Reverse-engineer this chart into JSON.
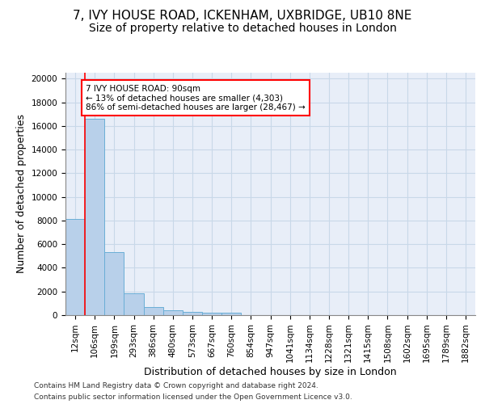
{
  "title_line1": "7, IVY HOUSE ROAD, ICKENHAM, UXBRIDGE, UB10 8NE",
  "title_line2": "Size of property relative to detached houses in London",
  "xlabel": "Distribution of detached houses by size in London",
  "ylabel": "Number of detached properties",
  "footer_line1": "Contains HM Land Registry data © Crown copyright and database right 2024.",
  "footer_line2": "Contains public sector information licensed under the Open Government Licence v3.0.",
  "categories": [
    "12sqm",
    "106sqm",
    "199sqm",
    "293sqm",
    "386sqm",
    "480sqm",
    "573sqm",
    "667sqm",
    "760sqm",
    "854sqm",
    "947sqm",
    "1041sqm",
    "1134sqm",
    "1228sqm",
    "1321sqm",
    "1415sqm",
    "1508sqm",
    "1602sqm",
    "1695sqm",
    "1789sqm",
    "1882sqm"
  ],
  "values": [
    8100,
    16600,
    5300,
    1850,
    700,
    380,
    280,
    220,
    200,
    0,
    0,
    0,
    0,
    0,
    0,
    0,
    0,
    0,
    0,
    0,
    0
  ],
  "bar_color": "#b8d0ea",
  "bar_edge_color": "#6aaed6",
  "vline_x": 0.5,
  "vline_color": "red",
  "annotation_text": "7 IVY HOUSE ROAD: 90sqm\n← 13% of detached houses are smaller (4,303)\n86% of semi-detached houses are larger (28,467) →",
  "annotation_box_color": "white",
  "annotation_box_edge": "red",
  "ylim": [
    0,
    20500
  ],
  "yticks": [
    0,
    2000,
    4000,
    6000,
    8000,
    10000,
    12000,
    14000,
    16000,
    18000,
    20000
  ],
  "grid_color": "#c8d8e8",
  "bg_color": "#e8eef8",
  "title_fontsize": 11,
  "subtitle_fontsize": 10,
  "axis_label_fontsize": 9,
  "tick_fontsize": 7.5,
  "footer_fontsize": 6.5
}
